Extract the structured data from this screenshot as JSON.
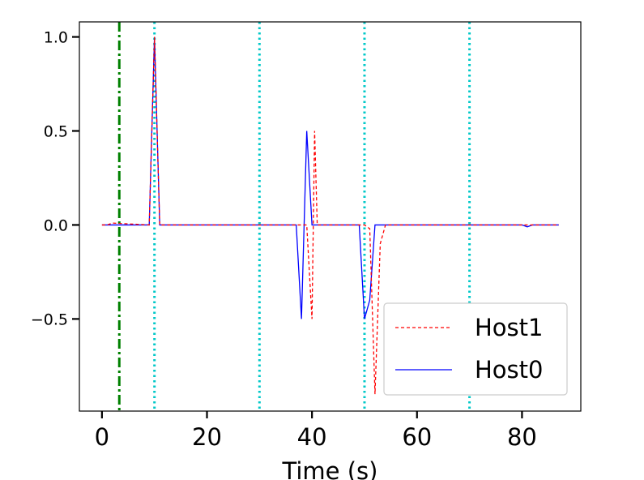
{
  "chart_data": {
    "type": "line",
    "title": "",
    "xlabel": "Time (s)",
    "ylabel": "",
    "xlim": [
      -4.3,
      91.2
    ],
    "ylim": [
      -0.99,
      1.08
    ],
    "xticks": [
      0,
      20,
      40,
      60,
      80
    ],
    "xtick_labels": [
      "0",
      "20",
      "40",
      "60",
      "80"
    ],
    "yticks": [
      -0.5,
      0.0,
      0.5,
      1.0
    ],
    "ytick_labels": [
      "−0.5",
      "0.0",
      "0.5",
      "1.0"
    ],
    "grid": false,
    "legend": {
      "position": "lower-right"
    },
    "series": [
      {
        "name": "Host1",
        "color": "#ff0000",
        "style": "dashed",
        "x": [
          0,
          1,
          2,
          9,
          10,
          11,
          37,
          38,
          39,
          40,
          40.5,
          41,
          42,
          50,
          51,
          52,
          53,
          54,
          87
        ],
        "y": [
          0,
          0,
          0.01,
          0,
          1.0,
          0,
          0,
          0,
          0,
          -0.5,
          0.5,
          0,
          0,
          0,
          -0.02,
          -0.9,
          -0.1,
          0,
          0
        ]
      },
      {
        "name": "Host0",
        "color": "#0000ff",
        "style": "solid",
        "x": [
          0,
          9,
          10,
          11,
          37,
          38,
          39,
          40,
          49,
          50,
          51,
          52,
          53,
          80,
          81,
          82,
          87
        ],
        "y": [
          0,
          0,
          1.0,
          0,
          0,
          -0.5,
          0.5,
          0,
          0,
          -0.5,
          -0.4,
          0,
          0,
          0,
          -0.01,
          0,
          0
        ]
      }
    ],
    "vlines": [
      {
        "x": 3.3,
        "color": "#008000",
        "style": "dashdot"
      },
      {
        "x": 10,
        "color": "#00c8c8",
        "style": "dotted"
      },
      {
        "x": 30,
        "color": "#00c8c8",
        "style": "dotted"
      },
      {
        "x": 50,
        "color": "#00c8c8",
        "style": "dotted"
      },
      {
        "x": 70,
        "color": "#00c8c8",
        "style": "dotted"
      }
    ]
  }
}
